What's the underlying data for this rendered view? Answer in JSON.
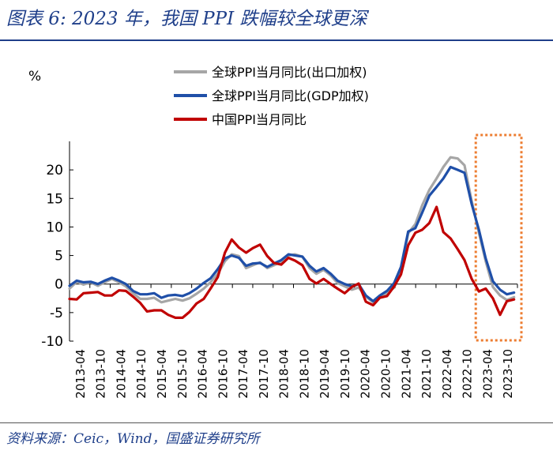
{
  "header": {
    "title": "图表 6:  2023 年，我国 PPI 跌幅较全球更深"
  },
  "footer": {
    "source": "资料来源：Ceic，Wind，国盛证券研究所"
  },
  "chart_data": {
    "type": "line",
    "ylabel": "%",
    "ylim": [
      -10,
      25
    ],
    "yticks": [
      -10,
      -5,
      0,
      5,
      10,
      15,
      20
    ],
    "xlim": [
      2013.25,
      2023.83
    ],
    "xticks": [
      "2013-04",
      "2013-10",
      "2014-04",
      "2014-10",
      "2015-04",
      "2015-10",
      "2016-04",
      "2016-10",
      "2017-04",
      "2017-10",
      "2018-04",
      "2018-10",
      "2019-04",
      "2019-10",
      "2020-04",
      "2020-10",
      "2021-04",
      "2021-10",
      "2022-04",
      "2022-10",
      "2023-04",
      "2023-10"
    ],
    "series": [
      {
        "name": "全球PPI当月同比(出口加权)",
        "color": "#a6a6a6",
        "x": [
          2013.25,
          2013.42,
          2013.58,
          2013.75,
          2013.92,
          2014.08,
          2014.25,
          2014.42,
          2014.58,
          2014.75,
          2014.92,
          2015.08,
          2015.25,
          2015.42,
          2015.58,
          2015.75,
          2015.92,
          2016.08,
          2016.25,
          2016.42,
          2016.58,
          2016.75,
          2016.92,
          2017.08,
          2017.25,
          2017.42,
          2017.58,
          2017.75,
          2017.92,
          2018.08,
          2018.25,
          2018.42,
          2018.58,
          2018.75,
          2018.92,
          2019.08,
          2019.25,
          2019.42,
          2019.58,
          2019.75,
          2019.92,
          2020.08,
          2020.25,
          2020.42,
          2020.58,
          2020.75,
          2020.92,
          2021.08,
          2021.25,
          2021.42,
          2021.58,
          2021.75,
          2021.92,
          2022.08,
          2022.25,
          2022.42,
          2022.58,
          2022.75,
          2022.92,
          2023.08,
          2023.25,
          2023.42,
          2023.58,
          2023.75
        ],
        "y": [
          -0.8,
          0.4,
          -0.1,
          0.3,
          -0.3,
          0.3,
          0.9,
          0.3,
          -0.4,
          -1.6,
          -2.6,
          -2.6,
          -2.4,
          -3.2,
          -2.9,
          -2.6,
          -2.9,
          -2.5,
          -1.7,
          -0.8,
          0.3,
          1.8,
          4.0,
          5.2,
          4.9,
          2.8,
          3.3,
          3.8,
          2.8,
          3.3,
          3.9,
          5.0,
          5.2,
          4.8,
          2.8,
          1.8,
          2.5,
          1.5,
          0.2,
          -0.4,
          -1.0,
          -0.6,
          -2.2,
          -3.2,
          -2.4,
          -1.6,
          -0.6,
          2.5,
          8.9,
          10.5,
          13.8,
          16.5,
          18.5,
          20.5,
          22.2,
          22.0,
          20.8,
          14.5,
          9.0,
          4.0,
          -0.5,
          -2.0,
          -2.8,
          -2.3
        ]
      },
      {
        "name": "全球PPI当月同比(GDP加权)",
        "color": "#1f4fa8",
        "x": [
          2013.25,
          2013.42,
          2013.58,
          2013.75,
          2013.92,
          2014.08,
          2014.25,
          2014.42,
          2014.58,
          2014.75,
          2014.92,
          2015.08,
          2015.25,
          2015.42,
          2015.58,
          2015.75,
          2015.92,
          2016.08,
          2016.25,
          2016.42,
          2016.58,
          2016.75,
          2016.92,
          2017.08,
          2017.25,
          2017.42,
          2017.58,
          2017.75,
          2017.92,
          2018.08,
          2018.25,
          2018.42,
          2018.58,
          2018.75,
          2018.92,
          2019.08,
          2019.25,
          2019.42,
          2019.58,
          2019.75,
          2019.92,
          2020.08,
          2020.25,
          2020.42,
          2020.58,
          2020.75,
          2020.92,
          2021.08,
          2021.25,
          2021.42,
          2021.58,
          2021.75,
          2021.92,
          2022.08,
          2022.25,
          2022.42,
          2022.58,
          2022.75,
          2022.92,
          2023.08,
          2023.25,
          2023.42,
          2023.58,
          2023.75
        ],
        "y": [
          -0.3,
          0.6,
          0.3,
          0.4,
          0.0,
          0.6,
          1.1,
          0.6,
          0.0,
          -1.2,
          -1.8,
          -1.8,
          -1.6,
          -2.4,
          -2.0,
          -1.9,
          -2.1,
          -1.6,
          -0.8,
          0.2,
          1.0,
          2.6,
          4.5,
          5.0,
          4.6,
          3.2,
          3.6,
          3.7,
          3.0,
          3.6,
          4.2,
          5.2,
          5.0,
          4.8,
          3.2,
          2.2,
          2.8,
          1.8,
          0.6,
          0.0,
          -0.4,
          0.0,
          -2.0,
          -3.0,
          -2.0,
          -1.2,
          0.2,
          3.0,
          9.2,
          9.8,
          12.5,
          15.5,
          17.0,
          18.5,
          20.5,
          20.0,
          19.5,
          14.0,
          9.5,
          4.5,
          0.5,
          -1.0,
          -1.8,
          -1.5
        ]
      },
      {
        "name": "中国PPI当月同比",
        "color": "#c00000",
        "x": [
          2013.25,
          2013.42,
          2013.58,
          2013.75,
          2013.92,
          2014.08,
          2014.25,
          2014.42,
          2014.58,
          2014.75,
          2014.92,
          2015.08,
          2015.25,
          2015.42,
          2015.58,
          2015.75,
          2015.92,
          2016.08,
          2016.25,
          2016.42,
          2016.58,
          2016.75,
          2016.92,
          2017.08,
          2017.25,
          2017.42,
          2017.58,
          2017.75,
          2017.92,
          2018.08,
          2018.25,
          2018.42,
          2018.58,
          2018.75,
          2018.92,
          2019.08,
          2019.25,
          2019.42,
          2019.58,
          2019.75,
          2019.92,
          2020.08,
          2020.25,
          2020.42,
          2020.58,
          2020.75,
          2020.92,
          2021.08,
          2021.25,
          2021.42,
          2021.58,
          2021.75,
          2021.92,
          2022.08,
          2022.25,
          2022.42,
          2022.58,
          2022.75,
          2022.92,
          2023.08,
          2023.25,
          2023.42,
          2023.58,
          2023.75
        ],
        "y": [
          -2.6,
          -2.7,
          -1.6,
          -1.5,
          -1.4,
          -2.0,
          -2.0,
          -1.1,
          -1.2,
          -2.2,
          -3.3,
          -4.8,
          -4.6,
          -4.6,
          -5.4,
          -5.9,
          -5.9,
          -4.9,
          -3.4,
          -2.6,
          -0.8,
          1.2,
          5.5,
          7.8,
          6.4,
          5.5,
          6.3,
          6.9,
          4.9,
          3.7,
          3.4,
          4.6,
          4.1,
          3.3,
          0.9,
          0.1,
          0.9,
          0.0,
          -0.8,
          -1.6,
          -0.5,
          0.1,
          -3.1,
          -3.7,
          -2.4,
          -2.1,
          -0.4,
          1.7,
          6.8,
          9.0,
          9.5,
          10.7,
          13.5,
          9.1,
          8.0,
          6.1,
          4.2,
          0.9,
          -1.3,
          -0.8,
          -2.5,
          -5.4,
          -3.0,
          -2.7
        ]
      }
    ],
    "highlight": {
      "from": 2022.92,
      "to": 2023.83,
      "color": "#ed7d31"
    }
  }
}
